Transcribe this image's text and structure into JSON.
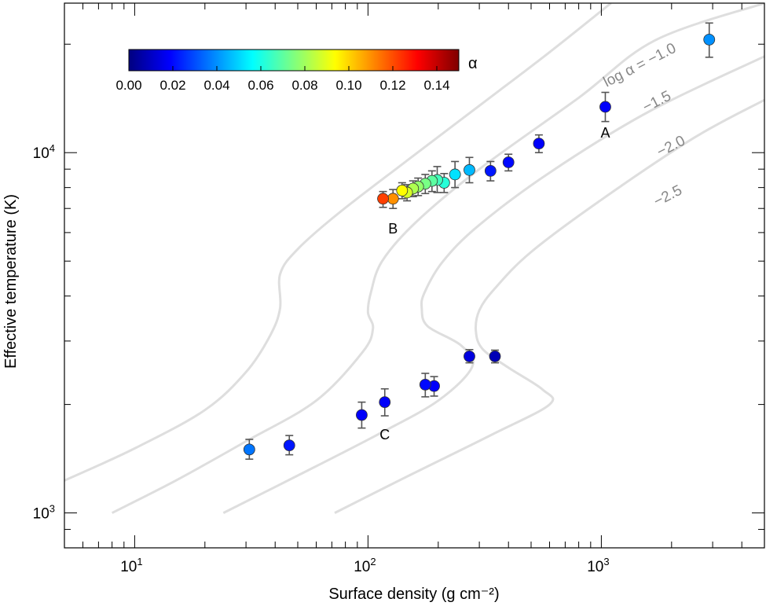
{
  "chart_data": {
    "type": "scatter",
    "xlabel": "Surface density (g cm⁻²)",
    "ylabel": "Effective temperature (K)",
    "xscale": "log",
    "yscale": "log",
    "xlim": [
      5,
      5000
    ],
    "ylim": [
      800,
      26000
    ],
    "x_tick_labels": [
      {
        "value": 10,
        "base": "10",
        "exp": "1"
      },
      {
        "value": 100,
        "base": "10",
        "exp": "2"
      },
      {
        "value": 1000,
        "base": "10",
        "exp": "3"
      }
    ],
    "y_tick_labels": [
      {
        "value": 1000,
        "base": "10",
        "exp": "3"
      },
      {
        "value": 10000,
        "base": "10",
        "exp": "4"
      }
    ],
    "colorbar": {
      "label": "α",
      "min": 0.0,
      "max": 0.15,
      "ticks": [
        "0.00",
        "0.02",
        "0.04",
        "0.06",
        "0.08",
        "0.10",
        "0.12",
        "0.14"
      ],
      "colormap": [
        "#00007f",
        "#0000ff",
        "#007fff",
        "#00ffff",
        "#7fff7f",
        "#ffff00",
        "#ff7f00",
        "#ff0000",
        "#7f0000"
      ]
    },
    "curves": [
      {
        "label": "log α = −1.0",
        "label_value": -1.0,
        "color": "#dedede",
        "points": [
          [
            5,
            1230
          ],
          [
            10,
            1510
          ],
          [
            20,
            1930
          ],
          [
            30,
            2460
          ],
          [
            38,
            3100
          ],
          [
            42,
            3700
          ],
          [
            42,
            4600
          ],
          [
            50,
            5400
          ],
          [
            75,
            6800
          ],
          [
            150,
            9600
          ],
          [
            300,
            13500
          ],
          [
            600,
            19000
          ],
          [
            1100,
            26000
          ]
        ]
      },
      {
        "label": "−1.5",
        "label_value": -1.5,
        "color": "#dedede",
        "points": [
          [
            8,
            1000
          ],
          [
            15,
            1230
          ],
          [
            30,
            1580
          ],
          [
            60,
            2050
          ],
          [
            95,
            2800
          ],
          [
            105,
            3250
          ],
          [
            100,
            3600
          ],
          [
            103,
            4100
          ],
          [
            115,
            5000
          ],
          [
            160,
            6400
          ],
          [
            300,
            9000
          ],
          [
            800,
            14200
          ],
          [
            1700,
            20500
          ],
          [
            5000,
            26000
          ]
        ]
      },
      {
        "label": "−2.0",
        "label_value": -2.0,
        "color": "#dedede",
        "points": [
          [
            24,
            1000
          ],
          [
            50,
            1270
          ],
          [
            110,
            1650
          ],
          [
            200,
            2050
          ],
          [
            280,
            2550
          ],
          [
            250,
            2920
          ],
          [
            180,
            3300
          ],
          [
            170,
            3700
          ],
          [
            175,
            4100
          ],
          [
            210,
            5000
          ],
          [
            300,
            6300
          ],
          [
            600,
            8800
          ],
          [
            1600,
            13000
          ],
          [
            5000,
            18500
          ]
        ]
      },
      {
        "label": "−2.5",
        "label_value": -2.5,
        "color": "#dedede",
        "points": [
          [
            72,
            1000
          ],
          [
            150,
            1270
          ],
          [
            340,
            1650
          ],
          [
            600,
            2000
          ],
          [
            560,
            2200
          ],
          [
            400,
            2530
          ],
          [
            310,
            2850
          ],
          [
            290,
            3200
          ],
          [
            300,
            3650
          ],
          [
            350,
            4200
          ],
          [
            500,
            5300
          ],
          [
            1000,
            7400
          ],
          [
            2500,
            11000
          ],
          [
            5000,
            14000
          ]
        ]
      }
    ],
    "series": [
      {
        "name": "observations",
        "points": [
          {
            "x": 2900,
            "y": 20600,
            "y_err_low": 2200,
            "y_err_high": 2300,
            "alpha": 0.04
          },
          {
            "x": 1040,
            "y": 13400,
            "y_err_low": 1200,
            "y_err_high": 1300,
            "alpha": 0.018
          },
          {
            "x": 540,
            "y": 10600,
            "y_err_low": 600,
            "y_err_high": 600,
            "alpha": 0.018
          },
          {
            "x": 400,
            "y": 9400,
            "y_err_low": 500,
            "y_err_high": 500,
            "alpha": 0.02
          },
          {
            "x": 335,
            "y": 8900,
            "y_err_low": 550,
            "y_err_high": 550,
            "alpha": 0.022
          },
          {
            "x": 272,
            "y": 8950,
            "y_err_low": 700,
            "y_err_high": 750,
            "alpha": 0.046
          },
          {
            "x": 236,
            "y": 8700,
            "y_err_low": 700,
            "y_err_high": 750,
            "alpha": 0.052
          },
          {
            "x": 212,
            "y": 8250,
            "y_err_low": 500,
            "y_err_high": 500,
            "alpha": 0.062
          },
          {
            "x": 198,
            "y": 8400,
            "y_err_low": 650,
            "y_err_high": 750,
            "alpha": 0.066
          },
          {
            "x": 188,
            "y": 8350,
            "y_err_low": 550,
            "y_err_high": 550,
            "alpha": 0.07
          },
          {
            "x": 176,
            "y": 8200,
            "y_err_low": 500,
            "y_err_high": 500,
            "alpha": 0.074
          },
          {
            "x": 164,
            "y": 8050,
            "y_err_low": 450,
            "y_err_high": 450,
            "alpha": 0.078
          },
          {
            "x": 156,
            "y": 7950,
            "y_err_low": 400,
            "y_err_high": 400,
            "alpha": 0.082
          },
          {
            "x": 147,
            "y": 7750,
            "y_err_low": 400,
            "y_err_high": 400,
            "alpha": 0.088
          },
          {
            "x": 140,
            "y": 7850,
            "y_err_low": 400,
            "y_err_high": 400,
            "alpha": 0.094
          },
          {
            "x": 128,
            "y": 7450,
            "y_err_low": 450,
            "y_err_high": 450,
            "alpha": 0.11
          },
          {
            "x": 116,
            "y": 7450,
            "y_err_low": 400,
            "y_err_high": 350,
            "alpha": 0.122
          },
          {
            "x": 350,
            "y": 2720,
            "y_err_low": 110,
            "y_err_high": 110,
            "alpha": 0.008
          },
          {
            "x": 272,
            "y": 2720,
            "y_err_low": 110,
            "y_err_high": 120,
            "alpha": 0.014
          },
          {
            "x": 192,
            "y": 2250,
            "y_err_low": 140,
            "y_err_high": 140,
            "alpha": 0.018
          },
          {
            "x": 176,
            "y": 2270,
            "y_err_low": 170,
            "y_err_high": 170,
            "alpha": 0.02
          },
          {
            "x": 118,
            "y": 2030,
            "y_err_low": 170,
            "y_err_high": 180,
            "alpha": 0.018
          },
          {
            "x": 94,
            "y": 1870,
            "y_err_low": 150,
            "y_err_high": 160,
            "alpha": 0.018
          },
          {
            "x": 46,
            "y": 1540,
            "y_err_low": 90,
            "y_err_high": 100,
            "alpha": 0.022
          },
          {
            "x": 31,
            "y": 1500,
            "y_err_low": 90,
            "y_err_high": 100,
            "alpha": 0.036
          }
        ]
      }
    ],
    "annotations": [
      {
        "text": "A",
        "x": 1040,
        "y": 11350
      },
      {
        "text": "B",
        "x": 128,
        "y": 6150
      },
      {
        "text": "C",
        "x": 118,
        "y": 1650
      }
    ]
  }
}
